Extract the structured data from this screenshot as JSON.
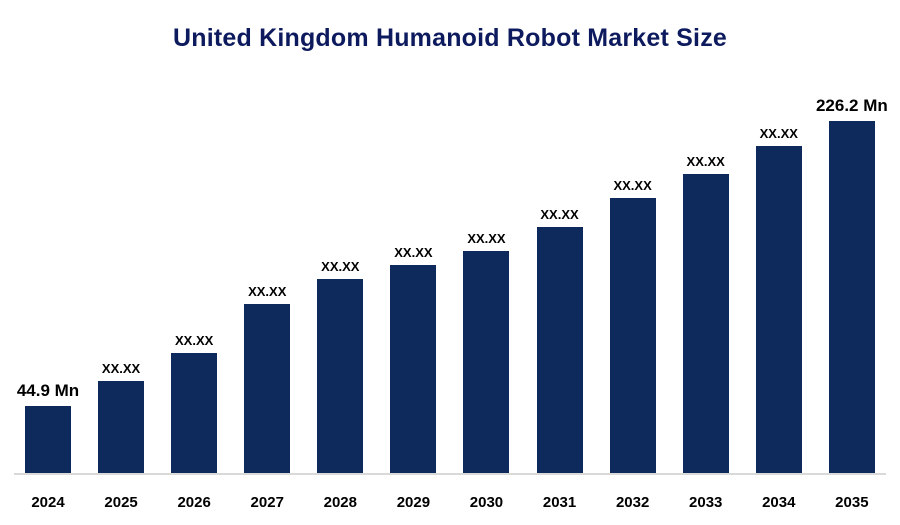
{
  "chart_data": {
    "type": "bar",
    "title": "United Kingdom Humanoid Robot Market Size",
    "categories": [
      "2024",
      "2025",
      "2026",
      "2027",
      "2028",
      "2029",
      "2030",
      "2031",
      "2032",
      "2033",
      "2034",
      "2035"
    ],
    "bar_labels": [
      "44.9 Mn",
      "XX.XX",
      "XX.XX",
      "XX.XX",
      "XX.XX",
      "XX.XX",
      "XX.XX",
      "XX.XX",
      "XX.XX",
      "XX.XX",
      "XX.XX",
      "226.2 Mn"
    ],
    "known_values": {
      "2024": 44.9,
      "2035": 226.2
    },
    "value_unit": "Mn",
    "bar_heights_pct": [
      19,
      26,
      34,
      48,
      55,
      59,
      63,
      70,
      78,
      85,
      93,
      100
    ],
    "xlabel": "",
    "ylabel": "",
    "grid": false,
    "legend": "none",
    "bar_color": "#0e2a5c",
    "title_color": "#0d1b5e",
    "axis_line_color": "#d9d9d9"
  }
}
